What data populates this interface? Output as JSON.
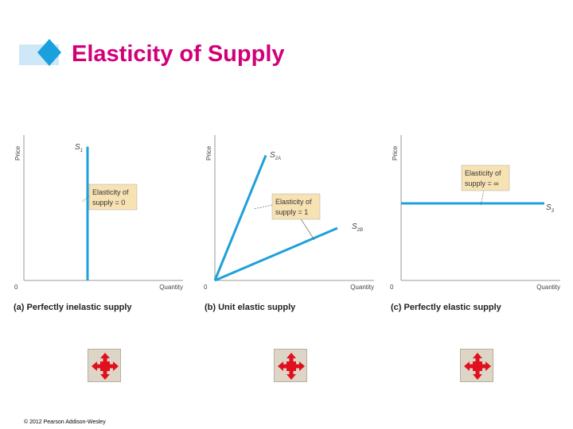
{
  "slide": {
    "title": "Elasticity of Supply",
    "copyright": "© 2012 Pearson Addison-Wesley"
  },
  "colors": {
    "title": "#d1007a",
    "curve": "#1fa0d8",
    "box_fill": "#f7e2b4",
    "deco_light": "#cfe8f8",
    "deco_dark": "#1aa0dc",
    "button_arrow": "#e0101e"
  },
  "icons": [
    "move-arrows-icon",
    "move-arrows-icon",
    "move-arrows-icon"
  ],
  "chart_data": [
    {
      "type": "line",
      "caption": "(a) Perfectly inelastic supply",
      "xlabel": "Quantity",
      "ylabel": "Price",
      "origin_label": "0",
      "xlim": [
        0,
        10
      ],
      "ylim": [
        0,
        10
      ],
      "grid": false,
      "series": [
        {
          "name": "S",
          "subscript": "1",
          "x": [
            4,
            4
          ],
          "y": [
            0,
            9.2
          ]
        }
      ],
      "annotation": {
        "lines": [
          "Elasticity of",
          "supply = 0"
        ]
      }
    },
    {
      "type": "line",
      "caption": "(b) Unit elastic supply",
      "xlabel": "Quantity",
      "ylabel": "Price",
      "origin_label": "0",
      "xlim": [
        0,
        10
      ],
      "ylim": [
        0,
        10
      ],
      "grid": false,
      "series": [
        {
          "name": "S",
          "subscript": "2A",
          "x": [
            0,
            3.2
          ],
          "y": [
            0,
            8.6
          ]
        },
        {
          "name": "S",
          "subscript": "2B",
          "x": [
            0,
            7.7
          ],
          "y": [
            0,
            3.6
          ]
        }
      ],
      "annotation": {
        "lines": [
          "Elasticity of",
          "supply = 1"
        ]
      }
    },
    {
      "type": "line",
      "caption": "(c) Perfectly elastic supply",
      "xlabel": "Quantity",
      "ylabel": "Price",
      "origin_label": "0",
      "xlim": [
        0,
        10
      ],
      "ylim": [
        0,
        10
      ],
      "grid": false,
      "series": [
        {
          "name": "S",
          "subscript": "3",
          "x": [
            0,
            9.0
          ],
          "y": [
            5.3,
            5.3
          ]
        }
      ],
      "annotation": {
        "lines": [
          "Elasticity of",
          "supply = ∞"
        ]
      }
    }
  ]
}
